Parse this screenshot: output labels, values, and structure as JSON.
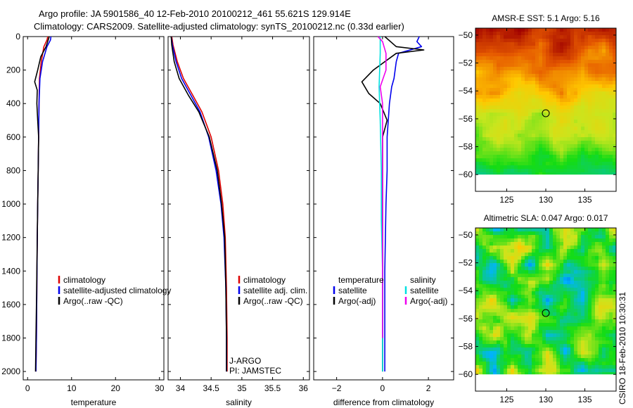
{
  "header": {
    "line1": "Argo profile: JA 5901586_40 12-Feb-2010 20100212_461 55.621S 129.914E",
    "line2": "Climatology: CARS2009. Satellite-adjusted climatology: synTS_20100212.nc (0.33d earlier)"
  },
  "credit": "CSIRO 18-Feb-2010 10:30:31",
  "colors": {
    "red": "#dd0000",
    "blue": "#0000ee",
    "black": "#000000",
    "cyan": "#00e0e0",
    "magenta": "#ee00ee"
  },
  "chart_data": [
    {
      "id": "temperature",
      "type": "line",
      "xlabel": "temperature",
      "xlim": [
        -1,
        31
      ],
      "ylim": [
        0,
        2050
      ],
      "yreverse": true,
      "xticks": [
        0,
        10,
        20,
        30
      ],
      "yticks": [
        0,
        200,
        400,
        600,
        800,
        1000,
        1200,
        1400,
        1600,
        1800,
        2000
      ],
      "series": [
        {
          "name": "climatology",
          "color": "red",
          "x": [
            4.6,
            4.4,
            3.7,
            3.1,
            2.7,
            2.6,
            2.5,
            2.4,
            2.3,
            2.2,
            2.1,
            2.0,
            1.9
          ],
          "y": [
            0,
            20,
            60,
            150,
            250,
            400,
            600,
            800,
            1000,
            1200,
            1500,
            1800,
            2000
          ]
        },
        {
          "name": "satellite-adjusted climatology",
          "color": "blue",
          "x": [
            5.3,
            5.2,
            4.4,
            3.4,
            2.8,
            2.6,
            2.5,
            2.4,
            2.3,
            2.2,
            2.1,
            2.0,
            1.9
          ],
          "y": [
            0,
            20,
            60,
            150,
            250,
            400,
            600,
            800,
            1000,
            1200,
            1500,
            1800,
            2000
          ]
        },
        {
          "name": "Argo(..raw -QC)",
          "color": "black",
          "x": [
            4.9,
            4.8,
            4.2,
            3.0,
            2.3,
            1.6,
            2.2,
            2.1,
            2.3,
            2.5,
            2.4,
            2.3,
            2.2,
            2.1,
            2.0,
            1.9,
            1.8
          ],
          "y": [
            0,
            10,
            60,
            120,
            200,
            270,
            320,
            400,
            500,
            600,
            800,
            1000,
            1200,
            1400,
            1600,
            1800,
            2000
          ]
        }
      ],
      "legend": [
        "climatology",
        "satellite-adjusted climatology",
        "Argo(..raw -QC)"
      ]
    },
    {
      "id": "salinity",
      "type": "line",
      "xlabel": "salinity",
      "xlim": [
        33.8,
        36.1
      ],
      "ylim": [
        0,
        2050
      ],
      "yreverse": true,
      "xticks": [
        34,
        34.5,
        35,
        35.5,
        36
      ],
      "series": [
        {
          "name": "climatology",
          "color": "red",
          "x": [
            33.86,
            33.88,
            33.95,
            34.05,
            34.2,
            34.35,
            34.5,
            34.62,
            34.69,
            34.73,
            34.75,
            34.76,
            34.76
          ],
          "y": [
            0,
            50,
            150,
            250,
            350,
            450,
            600,
            800,
            1000,
            1200,
            1500,
            1800,
            2000
          ]
        },
        {
          "name": "satellite adj. clim.",
          "color": "blue",
          "x": [
            33.85,
            33.87,
            33.93,
            34.02,
            34.17,
            34.32,
            34.46,
            34.58,
            34.66,
            34.71,
            34.74,
            34.75,
            34.75
          ],
          "y": [
            0,
            50,
            150,
            250,
            350,
            450,
            600,
            800,
            1000,
            1200,
            1500,
            1800,
            2000
          ]
        },
        {
          "name": "Argo(..raw -QC)",
          "color": "black",
          "x": [
            33.85,
            33.86,
            33.9,
            33.98,
            34.13,
            34.3,
            34.47,
            34.6,
            34.67,
            34.72,
            34.74,
            34.75,
            34.75
          ],
          "y": [
            0,
            50,
            150,
            250,
            350,
            450,
            600,
            800,
            1000,
            1200,
            1500,
            1800,
            2000
          ]
        }
      ],
      "legend": [
        "climatology",
        "satellite adj. clim.",
        "Argo(..raw -QC)"
      ],
      "annotations": [
        "J-ARGO",
        "PI: JAMSTEC"
      ]
    },
    {
      "id": "difference",
      "type": "line",
      "xlabel": "difference from climatology",
      "xlim": [
        -3,
        3.1
      ],
      "ylim": [
        0,
        2050
      ],
      "yreverse": true,
      "xticks": [
        -2,
        0,
        2
      ],
      "series": [
        {
          "name": "temperature satellite",
          "color": "blue",
          "x": [
            1.6,
            1.5,
            1.7,
            0.7,
            0.6,
            0.5,
            0.4,
            0.3,
            0.2,
            0.2,
            0.15,
            0.1,
            0.1,
            0.1
          ],
          "y": [
            0,
            30,
            60,
            100,
            150,
            250,
            300,
            400,
            600,
            800,
            1000,
            1400,
            1800,
            2000
          ]
        },
        {
          "name": "temperature Argo(-adj)",
          "color": "black",
          "x": [
            0.1,
            0.6,
            1.8,
            0.6,
            -0.4,
            -0.9,
            -0.6,
            -0.1,
            0.2,
            0.0,
            0.0,
            0.0,
            0.0,
            0.0
          ],
          "y": [
            0,
            60,
            80,
            100,
            200,
            270,
            340,
            400,
            500,
            600,
            800,
            1200,
            1600,
            2000
          ]
        },
        {
          "name": "salinity satellite",
          "color": "cyan",
          "x": [
            -0.1,
            -0.1,
            -0.15,
            -0.1,
            -0.05,
            -0.05,
            0.0,
            0.0,
            0.0
          ],
          "y": [
            0,
            100,
            300,
            500,
            800,
            1100,
            1400,
            1700,
            2000
          ]
        },
        {
          "name": "salinity Argo(-adj)",
          "color": "magenta",
          "x": [
            -0.2,
            0.0,
            0.15,
            0.15,
            -0.1,
            0.0,
            0.0,
            0.0,
            0.0,
            0.0
          ],
          "y": [
            0,
            30,
            100,
            200,
            300,
            400,
            600,
            1000,
            1400,
            1800
          ]
        }
      ],
      "legend_headers": [
        "temperature",
        "salinity"
      ],
      "legend": [
        "satellite",
        "Argo(-adj)",
        "satellite",
        "Argo(-adj)"
      ]
    },
    {
      "id": "sst_map",
      "type": "heatmap",
      "title": "AMSR-E SST: 5.1 Argo: 5.16",
      "xlim": [
        121,
        139
      ],
      "ylim": [
        -61.2,
        -49.5
      ],
      "xticks": [
        125,
        130,
        135
      ],
      "yticks": [
        -50,
        -52,
        -54,
        -56,
        -58,
        -60
      ],
      "data_bottom": -60,
      "marker": [
        130,
        -55.6
      ]
    },
    {
      "id": "sla_map",
      "type": "heatmap",
      "title": "Altimetric SLA: 0.047 Argo: 0.017",
      "xlim": [
        121,
        139
      ],
      "ylim": [
        -61.2,
        -49.5
      ],
      "xticks": [
        125,
        130,
        135
      ],
      "yticks": [
        -50,
        -52,
        -54,
        -56,
        -58,
        -60
      ],
      "data_bottom": -60,
      "marker": [
        130,
        -55.6
      ]
    }
  ]
}
